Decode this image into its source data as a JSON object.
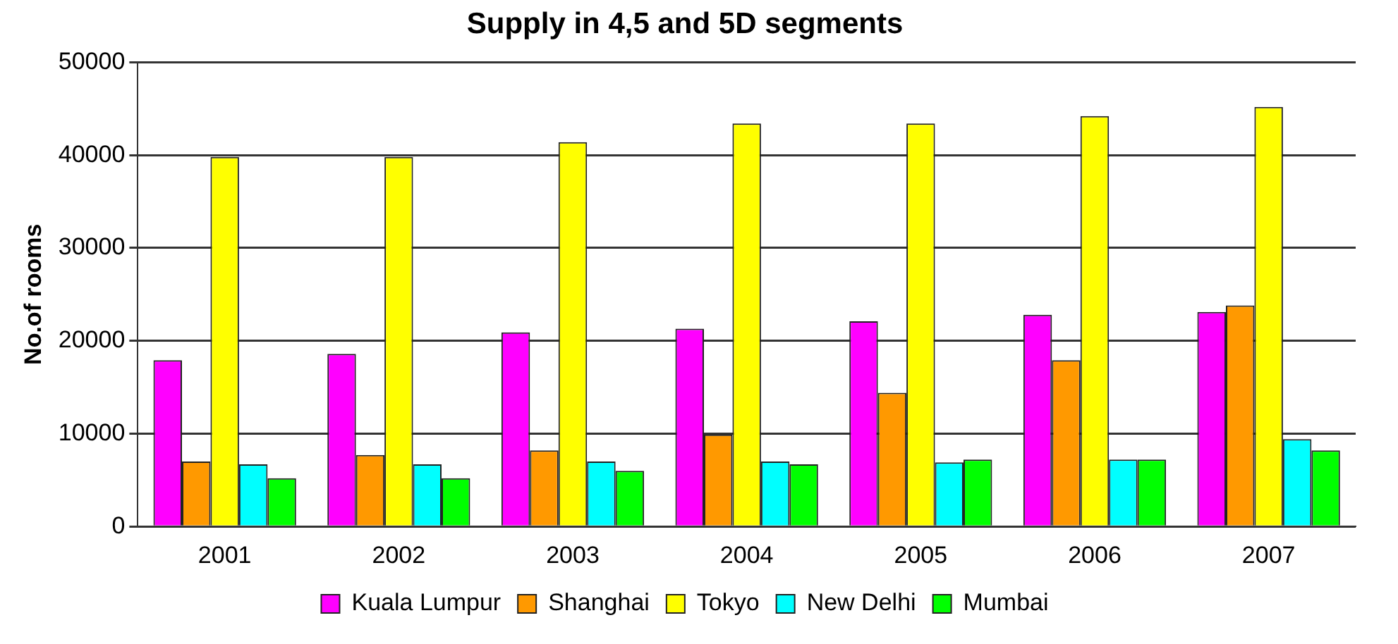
{
  "chart_data": {
    "type": "bar",
    "title": "Supply in 4,5 and 5D segments",
    "ylabel": "No.of rooms",
    "categories": [
      "2001",
      "2002",
      "2003",
      "2004",
      "2005",
      "2006",
      "2007"
    ],
    "series": [
      {
        "name": "Kuala Lumpur",
        "color": "#ff00ff",
        "values": [
          17900,
          18600,
          20900,
          21300,
          22100,
          22800,
          23100
        ]
      },
      {
        "name": "Shanghai",
        "color": "#ff9900",
        "values": [
          7000,
          7700,
          8200,
          9900,
          14400,
          17900,
          23800
        ]
      },
      {
        "name": "Tokyo",
        "color": "#ffff00",
        "values": [
          39800,
          39800,
          41400,
          43400,
          43400,
          44200,
          45200
        ]
      },
      {
        "name": "New Delhi",
        "color": "#00ffff",
        "values": [
          6700,
          6700,
          7000,
          7000,
          6900,
          7200,
          9400
        ]
      },
      {
        "name": "Mumbai",
        "color": "#00ff00",
        "values": [
          5200,
          5200,
          6000,
          6700,
          7200,
          7200,
          8200
        ]
      }
    ],
    "ylim": [
      0,
      50000
    ],
    "yticks": [
      0,
      10000,
      20000,
      30000,
      40000,
      50000
    ],
    "grid": "y",
    "legend": "bottom"
  }
}
